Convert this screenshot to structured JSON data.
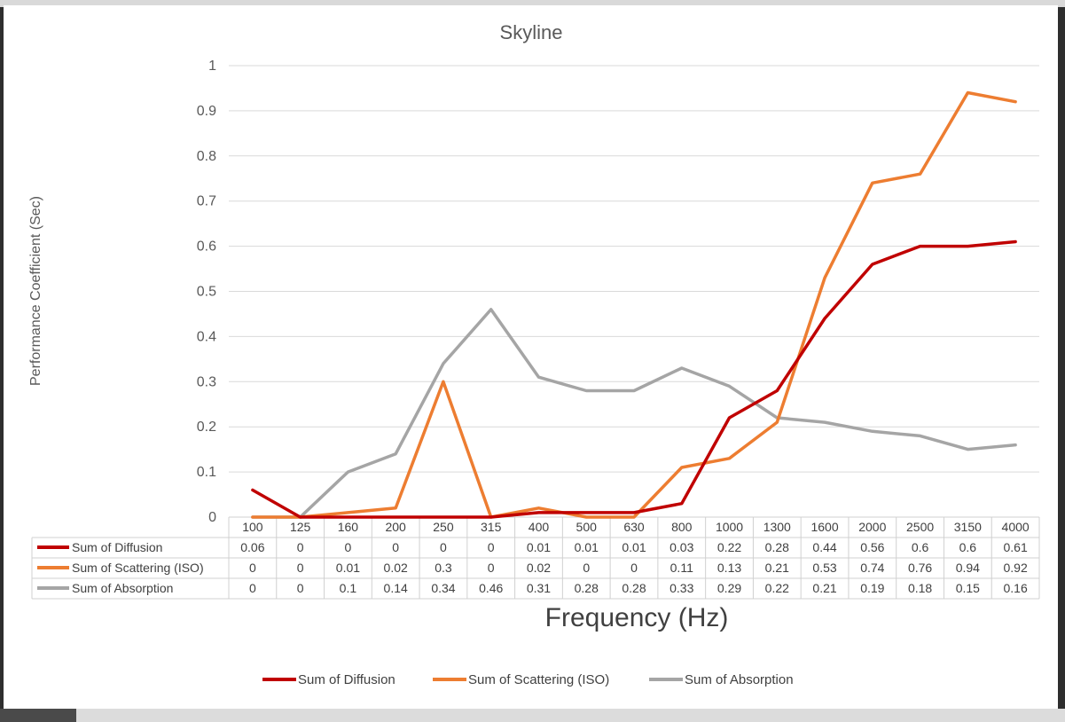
{
  "chart_data": {
    "type": "line",
    "title": "Skyline",
    "xlabel": "Frequency (Hz)",
    "ylabel": "Performance Coefficient (Sec)",
    "ylim": [
      0,
      1
    ],
    "yticks": [
      "0",
      "0.1",
      "0.2",
      "0.3",
      "0.4",
      "0.5",
      "0.6",
      "0.7",
      "0.8",
      "0.9",
      "1"
    ],
    "categories": [
      "100",
      "125",
      "160",
      "200",
      "250",
      "315",
      "400",
      "500",
      "630",
      "800",
      "1000",
      "1300",
      "1600",
      "2000",
      "2500",
      "3150",
      "4000"
    ],
    "series": [
      {
        "name": "Sum of Diffusion",
        "color": "#c00000",
        "values": [
          0.06,
          0,
          0,
          0,
          0,
          0,
          0.01,
          0.01,
          0.01,
          0.03,
          0.22,
          0.28,
          0.44,
          0.56,
          0.6,
          0.6,
          0.61
        ]
      },
      {
        "name": "Sum of Scattering (ISO)",
        "color": "#ed7d31",
        "values": [
          0,
          0,
          0.01,
          0.02,
          0.3,
          0,
          0.02,
          0,
          0,
          0.11,
          0.13,
          0.21,
          0.53,
          0.74,
          0.76,
          0.94,
          0.92
        ]
      },
      {
        "name": "Sum of Absorption",
        "color": "#a5a5a5",
        "values": [
          0,
          0,
          0.1,
          0.14,
          0.34,
          0.46,
          0.31,
          0.28,
          0.28,
          0.33,
          0.29,
          0.22,
          0.21,
          0.19,
          0.18,
          0.15,
          0.16
        ]
      }
    ],
    "grid": true,
    "legend": "bottom",
    "data_table": true
  }
}
